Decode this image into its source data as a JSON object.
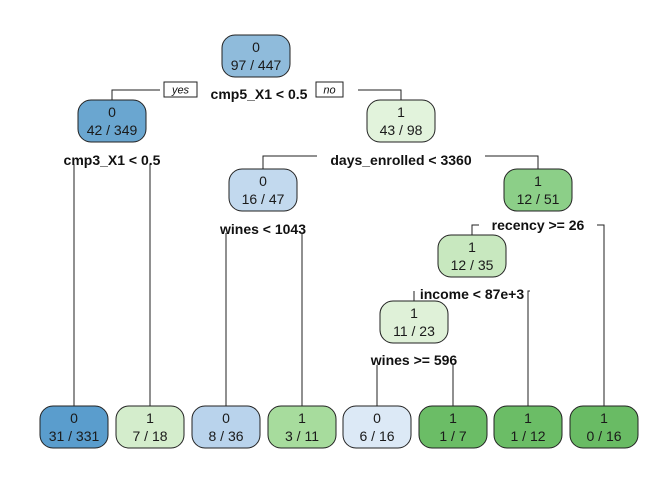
{
  "tree": {
    "branch_labels": {
      "left": "yes",
      "right": "no"
    },
    "palette": {
      "class0_dark": "#6aa6d0",
      "class0_light": "#dbe8f5",
      "class1_light": "#e3f3dc",
      "class1_dark": "#6dbe6a"
    },
    "nodes": [
      {
        "id": "n1",
        "cls": "0",
        "counts": "97 / 447",
        "split": "cmp5_X1 < 0.5",
        "fill": "#8fbbdb"
      },
      {
        "id": "n2",
        "cls": "0",
        "counts": "42 / 349",
        "split": "cmp3_X1 < 0.5",
        "fill": "#6aa6d0"
      },
      {
        "id": "n3",
        "cls": "1",
        "counts": "43 / 98",
        "split": "days_enrolled < 3360",
        "fill": "#e2f3dc"
      },
      {
        "id": "n6",
        "cls": "0",
        "counts": "16 / 47",
        "split": "wines < 1043",
        "fill": "#c2d9ee"
      },
      {
        "id": "n7",
        "cls": "1",
        "counts": "12 / 51",
        "split": "recency >= 26",
        "fill": "#8ccf88"
      },
      {
        "id": "n14",
        "cls": "1",
        "counts": "12 / 35",
        "split": "income < 87e+3",
        "fill": "#c8e8bf"
      },
      {
        "id": "n28",
        "cls": "1",
        "counts": "11 / 23",
        "split": "wines >= 596",
        "fill": "#dff1d8"
      },
      {
        "id": "leaf1",
        "cls": "0",
        "counts": "31 / 331",
        "fill": "#5a9dcd"
      },
      {
        "id": "leaf2",
        "cls": "1",
        "counts": "7 / 18",
        "fill": "#d4edcc"
      },
      {
        "id": "leaf3",
        "cls": "0",
        "counts": "8 / 36",
        "fill": "#b9d3ec"
      },
      {
        "id": "leaf4",
        "cls": "1",
        "counts": "3 / 11",
        "fill": "#a7dc9d"
      },
      {
        "id": "leaf5",
        "cls": "0",
        "counts": "6 / 16",
        "fill": "#dce9f6"
      },
      {
        "id": "leaf6",
        "cls": "1",
        "counts": "1 / 7",
        "fill": "#6bbd66"
      },
      {
        "id": "leaf7",
        "cls": "1",
        "counts": "1 / 12",
        "fill": "#6bbd66"
      },
      {
        "id": "leaf8",
        "cls": "1",
        "counts": "0 / 16",
        "fill": "#69bb64"
      }
    ]
  }
}
